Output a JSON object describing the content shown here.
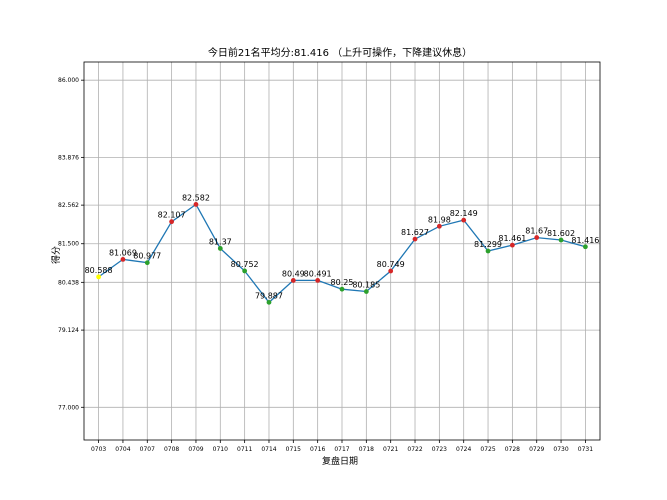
{
  "chart_data": {
    "type": "line",
    "title": "今日前21名平均分:81.416 （上升可操作，下降建议休息）",
    "xlabel": "复盘日期",
    "ylabel": "得分",
    "yticks": [
      77.0,
      79.124,
      80.438,
      81.5,
      82.562,
      83.876,
      86.0
    ],
    "ytick_labels": [
      "77.000",
      "79.124",
      "80.438",
      "81.500",
      "82.562",
      "83.876",
      "86.000"
    ],
    "ylim": [
      76.1,
      86.5
    ],
    "grid": true,
    "categories": [
      "0703",
      "0704",
      "0707",
      "0708",
      "0709",
      "0710",
      "0711",
      "0714",
      "0715",
      "0716",
      "0717",
      "0718",
      "0721",
      "0722",
      "0723",
      "0724",
      "0725",
      "0728",
      "0729",
      "0730",
      "0731"
    ],
    "values": [
      80.588,
      81.069,
      80.977,
      82.107,
      82.582,
      81.37,
      80.752,
      79.887,
      80.49,
      80.491,
      80.25,
      80.185,
      80.749,
      81.627,
      81.98,
      82.149,
      81.299,
      81.461,
      81.67,
      81.602,
      81.416
    ],
    "value_labels": [
      "80.588",
      "81.069",
      "80.977",
      "82.107",
      "82.582",
      "81.37",
      "80.752",
      "79.887",
      "80.49",
      "80.491",
      "80.25",
      "80.185",
      "80.749",
      "81.627",
      "81.98",
      "82.149",
      "81.299",
      "81.461",
      "81.67",
      "81.602",
      "81.416"
    ],
    "marker_colors": [
      "#ffff00",
      "#d62728",
      "#2ca02c",
      "#d62728",
      "#d62728",
      "#2ca02c",
      "#2ca02c",
      "#2ca02c",
      "#d62728",
      "#d62728",
      "#2ca02c",
      "#2ca02c",
      "#d62728",
      "#d62728",
      "#d62728",
      "#d62728",
      "#2ca02c",
      "#d62728",
      "#d62728",
      "#2ca02c",
      "#2ca02c"
    ],
    "line_color": "#1f77b4"
  }
}
